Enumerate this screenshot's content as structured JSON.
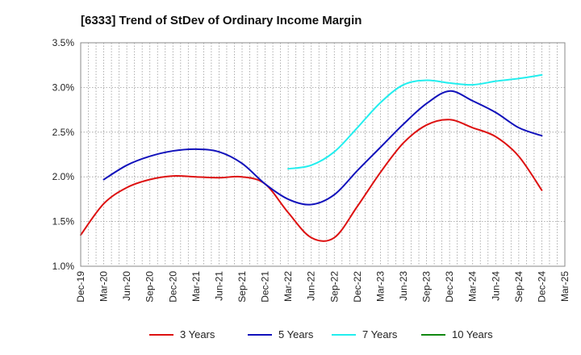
{
  "chart_data": {
    "type": "line",
    "title": "[6333]  Trend of StDev of Ordinary Income Margin",
    "xlabel": "",
    "ylabel": "",
    "ylim": [
      1.0,
      3.5
    ],
    "yticks": [
      "1.0%",
      "1.5%",
      "2.0%",
      "2.5%",
      "3.0%",
      "3.5%"
    ],
    "ytick_values": [
      1.0,
      1.5,
      2.0,
      2.5,
      3.0,
      3.5
    ],
    "x": [
      "Dec-19",
      "Mar-20",
      "Jun-20",
      "Sep-20",
      "Dec-20",
      "Mar-21",
      "Jun-21",
      "Sep-21",
      "Dec-21",
      "Mar-22",
      "Jun-22",
      "Sep-22",
      "Dec-22",
      "Mar-23",
      "Jun-23",
      "Sep-23",
      "Dec-23",
      "Mar-24",
      "Jun-24",
      "Sep-24",
      "Dec-24",
      "Mar-25"
    ],
    "grid": true,
    "legend_position": "bottom",
    "series": [
      {
        "name": "3 Years",
        "color": "#dd1111",
        "values": [
          1.35,
          1.7,
          1.88,
          1.97,
          2.01,
          2.0,
          1.99,
          2.0,
          1.92,
          1.6,
          1.32,
          1.32,
          1.67,
          2.05,
          2.38,
          2.58,
          2.64,
          2.55,
          2.45,
          2.23,
          1.85,
          null
        ]
      },
      {
        "name": "5 Years",
        "color": "#1111bb",
        "values": [
          null,
          1.97,
          2.13,
          2.23,
          2.29,
          2.31,
          2.28,
          2.15,
          1.92,
          1.75,
          1.69,
          1.8,
          2.07,
          2.33,
          2.59,
          2.82,
          2.96,
          2.85,
          2.72,
          2.55,
          2.46,
          null
        ]
      },
      {
        "name": "7 Years",
        "color": "#22eeee",
        "values": [
          null,
          null,
          null,
          null,
          null,
          null,
          null,
          null,
          null,
          2.09,
          2.13,
          2.28,
          2.55,
          2.83,
          3.03,
          3.08,
          3.05,
          3.03,
          3.07,
          3.1,
          3.14,
          null
        ]
      },
      {
        "name": "10 Years",
        "color": "#118811",
        "values": [
          null,
          null,
          null,
          null,
          null,
          null,
          null,
          null,
          null,
          null,
          null,
          null,
          null,
          null,
          null,
          null,
          null,
          null,
          null,
          null,
          null,
          null
        ]
      }
    ]
  }
}
